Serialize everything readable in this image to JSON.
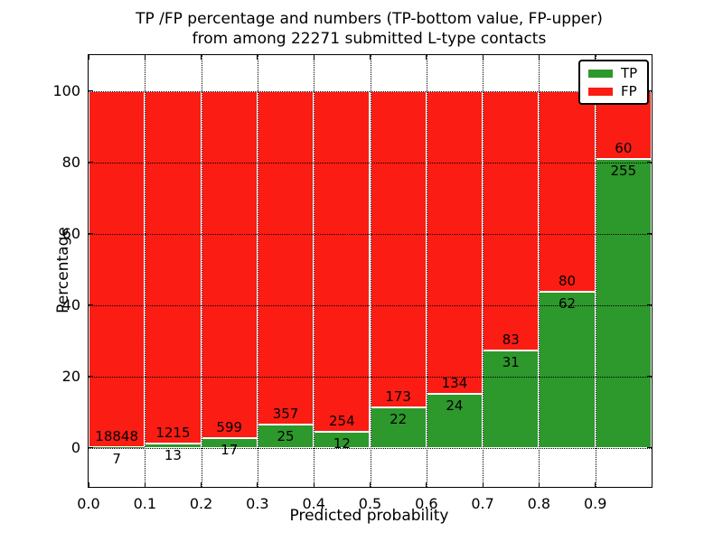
{
  "title": {
    "line1": "TP /FP percentage and numbers (TP-bottom value, FP-upper)",
    "line2": "from among 22271 submitted L-type contacts"
  },
  "colors": {
    "tp_green": "#2d982c",
    "fp_red": "#fb1c14",
    "background": "#ffffff",
    "text": "#000000",
    "bar_edge": "#ffffff",
    "grid": "#000000"
  },
  "chart_data": {
    "type": "bar",
    "stacked": true,
    "title": "TP /FP percentage and numbers (TP-bottom value, FP-upper) from among 22271 submitted L-type contacts",
    "total_submitted": 22271,
    "xlabel": "Predicted probability",
    "ylabel": "Percentage",
    "bin_starts": [
      0.0,
      0.1,
      0.2,
      0.3,
      0.4,
      0.5,
      0.6,
      0.7,
      0.8,
      0.9
    ],
    "bin_width": 0.1,
    "series": [
      {
        "name": "TP",
        "color": "#2d982c",
        "counts": [
          7,
          13,
          17,
          25,
          12,
          22,
          24,
          31,
          62,
          255
        ]
      },
      {
        "name": "FP",
        "color": "#fb1c14",
        "counts": [
          18848,
          1215,
          599,
          357,
          254,
          173,
          134,
          83,
          80,
          60
        ]
      }
    ],
    "tp_percent": [
      0.04,
      1.06,
      2.76,
      6.54,
      4.51,
      11.28,
      15.19,
      27.19,
      43.66,
      80.95
    ],
    "xticks": [
      "0.0",
      "0.1",
      "0.2",
      "0.3",
      "0.4",
      "0.5",
      "0.6",
      "0.7",
      "0.8",
      "0.9"
    ],
    "yticks": [
      "0",
      "20",
      "40",
      "60",
      "80",
      "100"
    ],
    "xlim": [
      0.0,
      1.0
    ],
    "ylim": [
      -11,
      110
    ],
    "grid": "dotted",
    "legend": {
      "position": "upper right",
      "entries": [
        {
          "label": "TP",
          "color": "#2d982c"
        },
        {
          "label": "FP",
          "color": "#fb1c14"
        }
      ]
    }
  }
}
